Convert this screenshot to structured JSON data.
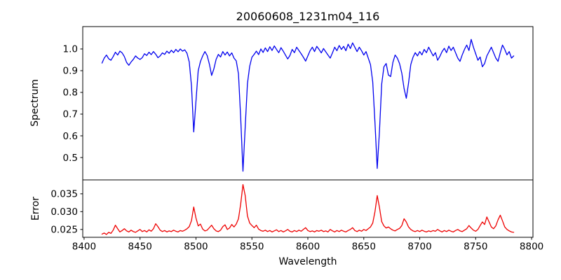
{
  "figure": {
    "title": "20060608_1231m04_116",
    "xlabel": "Wavelength",
    "background": "#ffffff",
    "spine_color": "#000000"
  },
  "chart_data": [
    {
      "type": "line",
      "panel": "top",
      "ylabel": "Spectrum",
      "color": "#0000ee",
      "xlim": [
        8398.8,
        8801.2
      ],
      "ylim": [
        0.397,
        1.103
      ],
      "yticks": [
        0.5,
        0.6,
        0.7,
        0.8,
        0.9,
        1.0
      ],
      "yticklabels": [
        "0.5",
        "0.6",
        "0.7",
        "0.8",
        "0.9",
        "1.0"
      ],
      "grid": false,
      "x": [
        8416,
        8418,
        8420,
        8422,
        8424,
        8426,
        8428,
        8430,
        8432,
        8434,
        8436,
        8438,
        8440,
        8442,
        8444,
        8446,
        8448,
        8450,
        8452,
        8454,
        8456,
        8458,
        8460,
        8462,
        8464,
        8466,
        8468,
        8470,
        8472,
        8474,
        8476,
        8478,
        8480,
        8482,
        8484,
        8486,
        8488,
        8490,
        8492,
        8494,
        8496,
        8498,
        8500,
        8502,
        8504,
        8506,
        8508,
        8510,
        8512,
        8514,
        8516,
        8518,
        8520,
        8522,
        8524,
        8526,
        8528,
        8530,
        8532,
        8534,
        8536,
        8538,
        8540,
        8542,
        8544,
        8546,
        8548,
        8550,
        8552,
        8554,
        8556,
        8558,
        8560,
        8562,
        8564,
        8566,
        8568,
        8570,
        8572,
        8574,
        8576,
        8578,
        8580,
        8582,
        8584,
        8586,
        8588,
        8590,
        8592,
        8594,
        8596,
        8598,
        8600,
        8602,
        8604,
        8606,
        8608,
        8610,
        8612,
        8614,
        8616,
        8618,
        8620,
        8622,
        8624,
        8626,
        8628,
        8630,
        8632,
        8634,
        8636,
        8638,
        8640,
        8642,
        8644,
        8646,
        8648,
        8650,
        8652,
        8654,
        8656,
        8658,
        8660,
        8662,
        8664,
        8666,
        8668,
        8670,
        8672,
        8674,
        8676,
        8678,
        8680,
        8682,
        8684,
        8686,
        8688,
        8690,
        8692,
        8694,
        8696,
        8698,
        8700,
        8702,
        8704,
        8706,
        8708,
        8710,
        8712,
        8714,
        8716,
        8718,
        8720,
        8722,
        8724,
        8726,
        8728,
        8730,
        8732,
        8734,
        8736,
        8738,
        8740,
        8742,
        8744,
        8746,
        8748,
        8750,
        8752,
        8754,
        8756,
        8758,
        8760,
        8762,
        8764,
        8766,
        8768,
        8770,
        8772,
        8774,
        8776,
        8778,
        8780,
        8782,
        8784
      ],
      "y": [
        0.935,
        0.958,
        0.972,
        0.955,
        0.948,
        0.965,
        0.985,
        0.972,
        0.99,
        0.982,
        0.965,
        0.938,
        0.925,
        0.94,
        0.952,
        0.968,
        0.958,
        0.952,
        0.96,
        0.978,
        0.97,
        0.985,
        0.974,
        0.988,
        0.976,
        0.96,
        0.968,
        0.982,
        0.975,
        0.99,
        0.98,
        0.994,
        0.983,
        0.998,
        0.987,
        1.0,
        0.99,
        0.996,
        0.98,
        0.94,
        0.83,
        0.618,
        0.76,
        0.9,
        0.942,
        0.968,
        0.988,
        0.97,
        0.93,
        0.878,
        0.908,
        0.952,
        0.975,
        0.963,
        0.988,
        0.972,
        0.986,
        0.968,
        0.982,
        0.958,
        0.945,
        0.885,
        0.68,
        0.437,
        0.64,
        0.84,
        0.92,
        0.962,
        0.975,
        0.99,
        0.974,
        1.0,
        0.984,
        1.005,
        0.988,
        1.01,
        0.993,
        1.014,
        0.998,
        0.983,
        1.006,
        0.99,
        0.972,
        0.954,
        0.97,
        0.998,
        0.983,
        1.008,
        0.993,
        0.978,
        0.962,
        0.944,
        0.968,
        0.992,
        1.008,
        0.988,
        1.012,
        0.998,
        0.982,
        1.002,
        0.987,
        0.972,
        0.958,
        0.982,
        1.008,
        0.992,
        1.016,
        0.998,
        1.012,
        0.992,
        1.022,
        1.002,
        1.028,
        1.008,
        0.988,
        1.008,
        0.992,
        0.972,
        0.988,
        0.958,
        0.928,
        0.848,
        0.66,
        0.45,
        0.62,
        0.838,
        0.918,
        0.933,
        0.88,
        0.873,
        0.938,
        0.972,
        0.958,
        0.932,
        0.888,
        0.818,
        0.773,
        0.843,
        0.928,
        0.962,
        0.983,
        0.968,
        0.988,
        0.973,
        0.998,
        0.983,
        1.008,
        0.988,
        0.968,
        0.983,
        0.948,
        0.966,
        0.988,
        1.003,
        0.983,
        1.013,
        0.993,
        1.008,
        0.983,
        0.958,
        0.943,
        0.973,
        0.998,
        1.018,
        0.993,
        1.044,
        1.008,
        0.978,
        0.948,
        0.963,
        0.918,
        0.933,
        0.968,
        0.988,
        1.008,
        0.983,
        0.958,
        0.943,
        0.983,
        1.018,
        0.998,
        0.973,
        0.988,
        0.958,
        0.968
      ]
    },
    {
      "type": "line",
      "panel": "bottom",
      "ylabel": "Error",
      "color": "#ee0000",
      "xlim": [
        8398.8,
        8801.2
      ],
      "ylim": [
        0.0228,
        0.0389
      ],
      "yticks": [
        0.025,
        0.03,
        0.035
      ],
      "yticklabels": [
        "0.025",
        "0.030",
        "0.035"
      ],
      "xticks": [
        8400,
        8450,
        8500,
        8550,
        8600,
        8650,
        8700,
        8750,
        8800
      ],
      "xticklabels": [
        "8400",
        "8450",
        "8500",
        "8550",
        "8600",
        "8650",
        "8700",
        "8750",
        "8800"
      ],
      "grid": false,
      "x": [
        8416,
        8418,
        8420,
        8422,
        8424,
        8426,
        8428,
        8430,
        8432,
        8434,
        8436,
        8438,
        8440,
        8442,
        8444,
        8446,
        8448,
        8450,
        8452,
        8454,
        8456,
        8458,
        8460,
        8462,
        8464,
        8466,
        8468,
        8470,
        8472,
        8474,
        8476,
        8478,
        8480,
        8482,
        8484,
        8486,
        8488,
        8490,
        8492,
        8494,
        8496,
        8498,
        8500,
        8502,
        8504,
        8506,
        8508,
        8510,
        8512,
        8514,
        8516,
        8518,
        8520,
        8522,
        8524,
        8526,
        8528,
        8530,
        8532,
        8534,
        8536,
        8538,
        8540,
        8542,
        8544,
        8546,
        8548,
        8550,
        8552,
        8554,
        8556,
        8558,
        8560,
        8562,
        8564,
        8566,
        8568,
        8570,
        8572,
        8574,
        8576,
        8578,
        8580,
        8582,
        8584,
        8586,
        8588,
        8590,
        8592,
        8594,
        8596,
        8598,
        8600,
        8602,
        8604,
        8606,
        8608,
        8610,
        8612,
        8614,
        8616,
        8618,
        8620,
        8622,
        8624,
        8626,
        8628,
        8630,
        8632,
        8634,
        8636,
        8638,
        8640,
        8642,
        8644,
        8646,
        8648,
        8650,
        8652,
        8654,
        8656,
        8658,
        8660,
        8662,
        8664,
        8666,
        8668,
        8670,
        8672,
        8674,
        8676,
        8678,
        8680,
        8682,
        8684,
        8686,
        8688,
        8690,
        8692,
        8694,
        8696,
        8698,
        8700,
        8702,
        8704,
        8706,
        8708,
        8710,
        8712,
        8714,
        8716,
        8718,
        8720,
        8722,
        8724,
        8726,
        8728,
        8730,
        8732,
        8734,
        8736,
        8738,
        8740,
        8742,
        8744,
        8746,
        8748,
        8750,
        8752,
        8754,
        8756,
        8758,
        8760,
        8762,
        8764,
        8766,
        8768,
        8770,
        8772,
        8774,
        8776,
        8778,
        8780,
        8782,
        8784
      ],
      "y": [
        0.0237,
        0.024,
        0.0236,
        0.0242,
        0.0239,
        0.0248,
        0.0262,
        0.0252,
        0.0243,
        0.0247,
        0.0252,
        0.0246,
        0.0243,
        0.0248,
        0.0244,
        0.0242,
        0.0246,
        0.025,
        0.0244,
        0.0247,
        0.0243,
        0.0249,
        0.0245,
        0.0252,
        0.0266,
        0.0258,
        0.0248,
        0.0244,
        0.0247,
        0.0243,
        0.0246,
        0.0244,
        0.0248,
        0.0245,
        0.0243,
        0.0247,
        0.0245,
        0.0248,
        0.0252,
        0.0258,
        0.0275,
        0.0313,
        0.0282,
        0.026,
        0.0265,
        0.0251,
        0.0246,
        0.0248,
        0.0255,
        0.0262,
        0.0252,
        0.0246,
        0.0244,
        0.0248,
        0.0258,
        0.0263,
        0.025,
        0.0254,
        0.0264,
        0.0257,
        0.0265,
        0.028,
        0.0322,
        0.0376,
        0.0345,
        0.0288,
        0.0268,
        0.0261,
        0.0255,
        0.0262,
        0.0251,
        0.0247,
        0.0245,
        0.0248,
        0.0244,
        0.0247,
        0.0243,
        0.0246,
        0.0249,
        0.0244,
        0.0247,
        0.0243,
        0.0246,
        0.025,
        0.0245,
        0.0243,
        0.0247,
        0.0244,
        0.0248,
        0.0245,
        0.025,
        0.0255,
        0.0247,
        0.0244,
        0.0246,
        0.0243,
        0.0247,
        0.0245,
        0.0248,
        0.0244,
        0.0246,
        0.0243,
        0.025,
        0.0246,
        0.0243,
        0.0247,
        0.0244,
        0.0248,
        0.0245,
        0.0243,
        0.0247,
        0.025,
        0.0255,
        0.0247,
        0.0244,
        0.0248,
        0.0245,
        0.025,
        0.0247,
        0.0252,
        0.0257,
        0.0268,
        0.03,
        0.0345,
        0.0312,
        0.0272,
        0.026,
        0.0254,
        0.0257,
        0.0252,
        0.0248,
        0.0246,
        0.025,
        0.0253,
        0.0261,
        0.028,
        0.0271,
        0.0257,
        0.025,
        0.0246,
        0.0244,
        0.0247,
        0.0244,
        0.0248,
        0.0245,
        0.0243,
        0.0246,
        0.0244,
        0.0247,
        0.0245,
        0.025,
        0.0246,
        0.0243,
        0.0247,
        0.0244,
        0.0248,
        0.0245,
        0.0243,
        0.0247,
        0.025,
        0.0246,
        0.0244,
        0.0248,
        0.0252,
        0.0261,
        0.0254,
        0.0248,
        0.0245,
        0.025,
        0.0261,
        0.0271,
        0.0264,
        0.0285,
        0.0271,
        0.0257,
        0.0252,
        0.026,
        0.0277,
        0.029,
        0.0274,
        0.0257,
        0.025,
        0.0246,
        0.0243,
        0.0242
      ]
    }
  ]
}
